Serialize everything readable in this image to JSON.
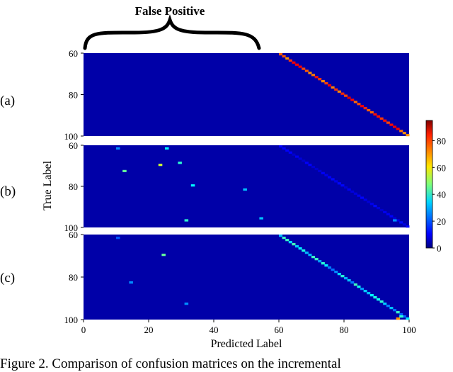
{
  "brace_label": "False Positive",
  "caption": "Figure 2. Comparison of confusion matrices on the incremental",
  "chart_data": {
    "type": "heatmap",
    "panels": [
      {
        "label": "(a)",
        "pattern": "old-class block near zero; new-class block (60–100) strong diagonal",
        "diag_values_approx": [
          85,
          80,
          78,
          75,
          82,
          76,
          80,
          74,
          79,
          85
        ]
      },
      {
        "label": "(b)",
        "pattern": "many off-diagonal hits in columns 0–56 (false positives); weak faint diagonal in 60–100",
        "notable_points": [
          [
            23,
            69,
            55
          ],
          [
            12,
            72,
            45
          ],
          [
            29,
            68,
            40
          ],
          [
            33,
            79,
            35
          ],
          [
            49,
            81,
            30
          ],
          [
            31,
            96,
            40
          ],
          [
            54,
            95,
            30
          ],
          [
            95,
            96,
            25
          ],
          [
            10,
            61,
            25
          ],
          [
            25,
            61,
            35
          ]
        ]
      },
      {
        "label": "(c)",
        "pattern": "diagonal in 60–100 with reduced false positives in 0–60",
        "notable_points": [
          [
            24,
            69,
            45
          ],
          [
            10,
            61,
            20
          ],
          [
            14,
            82,
            25
          ],
          [
            31,
            92,
            25
          ],
          [
            96,
            100,
            70
          ],
          [
            97,
            98,
            40
          ]
        ]
      }
    ],
    "xlabel": "Predicted Label",
    "ylabel": "True Label",
    "x_ticks": [
      "0",
      "20",
      "40",
      "60",
      "80",
      "100"
    ],
    "y_ticks": [
      "60",
      "80",
      "100"
    ],
    "xlim": [
      0,
      100
    ],
    "ylim": [
      60,
      100
    ],
    "colorbar": {
      "ticks": [
        "0",
        "20",
        "40",
        "60",
        "80"
      ],
      "range": [
        0,
        95
      ],
      "colormap": "jet"
    },
    "grid": false
  }
}
